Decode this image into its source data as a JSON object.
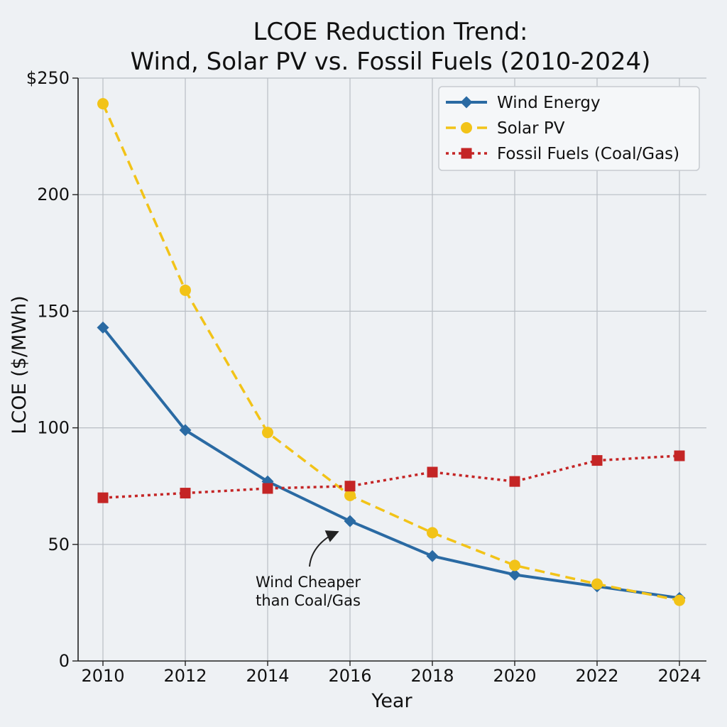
{
  "chart_data": {
    "type": "line",
    "title_lines": [
      "LCOE Reduction Trend:",
      "Wind, Solar PV vs. Fossil Fuels (2010-2024)"
    ],
    "xlabel": "Year",
    "ylabel": "LCOE ($/MWh)",
    "x": [
      2010,
      2012,
      2014,
      2016,
      2018,
      2020,
      2022,
      2024
    ],
    "x_tick_labels": [
      "2010",
      "2012",
      "2014",
      "2016",
      "2018",
      "2020",
      "2022",
      "2024"
    ],
    "ylim": [
      0,
      250
    ],
    "y_ticks": [
      0,
      50,
      100,
      150,
      200,
      250
    ],
    "y_tick_labels": [
      "0",
      "50",
      "100",
      "150",
      "200",
      "$250"
    ],
    "grid": true,
    "legend_position": "top-right",
    "series": [
      {
        "name": "Wind Energy",
        "color": "#2a6aa3",
        "line_style": "solid",
        "marker": "diamond",
        "values": [
          143,
          99,
          77,
          60,
          45,
          37,
          32,
          27
        ]
      },
      {
        "name": "Solar PV",
        "color": "#f2c318",
        "line_style": "dashed",
        "marker": "circle",
        "values": [
          239,
          159,
          98,
          71,
          55,
          41,
          33,
          26
        ]
      },
      {
        "name": "Fossil Fuels (Coal/Gas)",
        "color": "#c42525",
        "line_style": "dotted",
        "marker": "square",
        "values": [
          70,
          72,
          74,
          75,
          81,
          77,
          86,
          88
        ]
      }
    ],
    "annotation": {
      "lines": [
        "Wind Cheaper",
        "than Coal/Gas"
      ],
      "target_x": 2016,
      "target_y": 60
    }
  }
}
